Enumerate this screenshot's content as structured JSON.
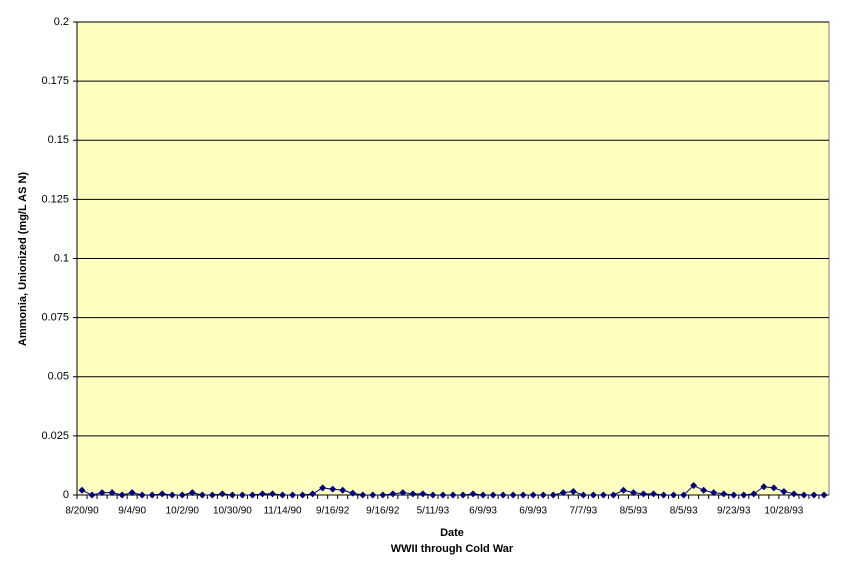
{
  "chart_data": {
    "type": "line",
    "ylabel": "Ammonia, Unionized (mg/L AS N)",
    "xlabel": "Date",
    "subtitle": "WWII through Cold War",
    "categories": [
      "8/20/90",
      null,
      null,
      null,
      null,
      "9/4/90",
      null,
      null,
      null,
      null,
      "10/2/90",
      null,
      null,
      null,
      null,
      "10/30/90",
      null,
      null,
      null,
      null,
      "11/14/90",
      null,
      null,
      null,
      null,
      "9/16/92",
      null,
      null,
      null,
      null,
      "9/16/92",
      null,
      null,
      null,
      null,
      "5/11/93",
      null,
      null,
      null,
      null,
      "6/9/93",
      null,
      null,
      null,
      null,
      "6/9/93",
      null,
      null,
      null,
      null,
      "7/7/93",
      null,
      null,
      null,
      null,
      "8/5/93",
      null,
      null,
      null,
      null,
      "8/5/93",
      null,
      null,
      null,
      null,
      "9/23/93",
      null,
      null,
      null,
      null,
      "10/28/93",
      null,
      null,
      null,
      null
    ],
    "series": [
      {
        "name": "Ammonia, Unionized",
        "color": "#000080",
        "values": [
          0.002,
          0,
          0.001,
          0.001,
          0,
          0.001,
          0,
          0,
          0.0005,
          0,
          0,
          0.001,
          0,
          0,
          0.0005,
          0,
          0,
          0,
          0.0005,
          0.0005,
          0,
          0,
          0,
          0.0005,
          0.003,
          0.0025,
          0.002,
          0.0008,
          0,
          0,
          0,
          0.0005,
          0.001,
          0.0005,
          0.0005,
          0,
          0,
          0,
          0,
          0.0005,
          0,
          0,
          0,
          0,
          0,
          0,
          0,
          0,
          0.001,
          0.0015,
          0,
          0,
          0,
          0,
          0.002,
          0.001,
          0.0005,
          0.0005,
          0,
          0,
          0,
          0.004,
          0.002,
          0.001,
          0.0005,
          0,
          0,
          0.0005,
          0.0035,
          0.003,
          0.0015,
          0.0005,
          0,
          0,
          0
        ]
      }
    ],
    "ylim": [
      0,
      0.2
    ],
    "yticks": [
      0,
      0.025,
      0.05,
      0.075,
      0.1,
      0.125,
      0.15,
      0.175,
      0.2
    ],
    "grid": true,
    "plot_background": "#ffffc0"
  }
}
